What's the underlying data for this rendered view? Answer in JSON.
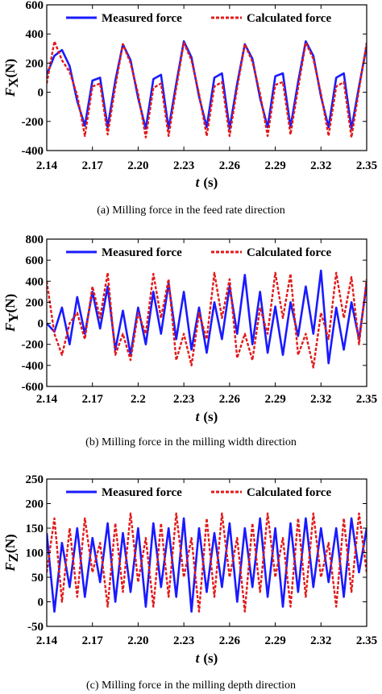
{
  "colors": {
    "measured": "#1a1aff",
    "calculated": "#e21a1a",
    "axis": "#000000"
  },
  "chart_data": [
    {
      "type": "line",
      "caption": "(a) Milling force in the feed rate direction",
      "ylabel_sym": "F",
      "ylabel_sub": "X",
      "ylabel_unit": "(N)",
      "xlabel_sym": "t",
      "xlabel_unit": "(s)",
      "xlim": [
        2.14,
        2.35
      ],
      "ylim": [
        -400,
        600
      ],
      "xticks": [
        2.14,
        2.17,
        2.2,
        2.23,
        2.26,
        2.29,
        2.32,
        2.35
      ],
      "xtick_labels": [
        "2.14",
        "2.17",
        "2.20",
        "2.23",
        "2.26",
        "2.29",
        "2.32",
        "2.35"
      ],
      "yticks": [
        -400,
        -200,
        0,
        200,
        400,
        600
      ],
      "ytick_labels": [
        "-400",
        "-200",
        "0",
        "200",
        "400",
        "600"
      ],
      "legend": [
        "Measured force",
        "Calculated force"
      ],
      "series": [
        {
          "name": "Measured force",
          "style": "solid",
          "x": [
            2.14,
            2.145,
            2.15,
            2.155,
            2.16,
            2.165,
            2.17,
            2.175,
            2.18,
            2.185,
            2.19,
            2.195,
            2.2,
            2.205,
            2.21,
            2.215,
            2.22,
            2.225,
            2.23,
            2.235,
            2.24,
            2.245,
            2.25,
            2.255,
            2.26,
            2.265,
            2.27,
            2.275,
            2.28,
            2.285,
            2.29,
            2.295,
            2.3,
            2.305,
            2.31,
            2.315,
            2.32,
            2.325,
            2.33,
            2.335,
            2.34,
            2.345,
            2.35
          ],
          "y": [
            120,
            250,
            290,
            180,
            -60,
            -230,
            80,
            100,
            -240,
            80,
            330,
            220,
            -40,
            -250,
            90,
            120,
            -250,
            60,
            350,
            240,
            -30,
            -240,
            100,
            130,
            -250,
            60,
            330,
            230,
            -40,
            -240,
            110,
            130,
            -240,
            70,
            350,
            250,
            -30,
            -240,
            100,
            130,
            -250,
            40,
            320
          ]
        },
        {
          "name": "Calculated force",
          "style": "dashed",
          "x": [
            2.14,
            2.145,
            2.15,
            2.155,
            2.16,
            2.165,
            2.17,
            2.175,
            2.18,
            2.185,
            2.19,
            2.195,
            2.2,
            2.205,
            2.21,
            2.215,
            2.22,
            2.225,
            2.23,
            2.235,
            2.24,
            2.245,
            2.25,
            2.255,
            2.26,
            2.265,
            2.27,
            2.275,
            2.28,
            2.285,
            2.29,
            2.295,
            2.3,
            2.305,
            2.31,
            2.315,
            2.32,
            2.325,
            2.33,
            2.335,
            2.34,
            2.345,
            2.35
          ],
          "y": [
            60,
            350,
            220,
            140,
            -20,
            -300,
            40,
            60,
            -290,
            40,
            330,
            200,
            -10,
            -310,
            30,
            60,
            -300,
            30,
            340,
            220,
            -10,
            -300,
            40,
            70,
            -300,
            30,
            330,
            210,
            -10,
            -300,
            50,
            70,
            -290,
            30,
            340,
            230,
            -10,
            -300,
            40,
            70,
            -310,
            20,
            340
          ]
        }
      ]
    },
    {
      "type": "line",
      "caption": "(b) Milling force in the milling width direction",
      "ylabel_sym": "F",
      "ylabel_sub": "Y",
      "ylabel_unit": "(N)",
      "xlabel_sym": "t",
      "xlabel_unit": "(s)",
      "xlim": [
        2.14,
        2.35
      ],
      "ylim": [
        -600,
        800
      ],
      "xticks": [
        2.14,
        2.17,
        2.2,
        2.23,
        2.26,
        2.29,
        2.32,
        2.35
      ],
      "xtick_labels": [
        "2.14",
        "2.17",
        "2.2",
        "2.23",
        "2.26",
        "2.29",
        "2.32",
        "2.35"
      ],
      "yticks": [
        -600,
        -400,
        -200,
        0,
        200,
        400,
        600,
        800
      ],
      "ytick_labels": [
        "-600",
        "-400",
        "-200",
        "0",
        "200",
        "400",
        "600",
        "800"
      ],
      "legend": [
        "Measured force",
        "Calculated force"
      ],
      "series": [
        {
          "name": "Measured force",
          "style": "solid",
          "x": [
            2.14,
            2.145,
            2.15,
            2.155,
            2.16,
            2.165,
            2.17,
            2.175,
            2.18,
            2.185,
            2.19,
            2.195,
            2.2,
            2.205,
            2.21,
            2.215,
            2.22,
            2.225,
            2.23,
            2.235,
            2.24,
            2.245,
            2.25,
            2.255,
            2.26,
            2.265,
            2.27,
            2.275,
            2.28,
            2.285,
            2.29,
            2.295,
            2.3,
            2.305,
            2.31,
            2.315,
            2.32,
            2.325,
            2.33,
            2.335,
            2.34,
            2.345,
            2.35
          ],
          "y": [
            0,
            -80,
            150,
            -200,
            250,
            -100,
            300,
            -50,
            350,
            -250,
            120,
            -300,
            150,
            -200,
            300,
            -100,
            380,
            -150,
            300,
            -250,
            150,
            -280,
            200,
            -150,
            350,
            -100,
            460,
            -200,
            300,
            -280,
            160,
            -300,
            200,
            -120,
            350,
            -100,
            500,
            -380,
            150,
            -250,
            200,
            -150,
            380
          ]
        },
        {
          "name": "Calculated force",
          "style": "dashed",
          "x": [
            2.14,
            2.145,
            2.15,
            2.155,
            2.16,
            2.165,
            2.17,
            2.175,
            2.18,
            2.185,
            2.19,
            2.195,
            2.2,
            2.205,
            2.21,
            2.215,
            2.22,
            2.225,
            2.23,
            2.235,
            2.24,
            2.245,
            2.25,
            2.255,
            2.26,
            2.265,
            2.27,
            2.275,
            2.28,
            2.285,
            2.29,
            2.295,
            2.3,
            2.305,
            2.31,
            2.315,
            2.32,
            2.325,
            2.33,
            2.335,
            2.34,
            2.345,
            2.35
          ],
          "y": [
            400,
            -100,
            -300,
            0,
            100,
            -150,
            350,
            50,
            480,
            -300,
            -100,
            -350,
            100,
            -100,
            470,
            50,
            420,
            -350,
            -100,
            -400,
            100,
            -150,
            480,
            50,
            420,
            -330,
            -100,
            -350,
            150,
            -100,
            480,
            50,
            470,
            -300,
            -100,
            -420,
            100,
            -150,
            480,
            50,
            440,
            -200,
            420
          ]
        }
      ]
    },
    {
      "type": "line",
      "caption": "(c) Milling force in the milling depth direction",
      "ylabel_sym": "F",
      "ylabel_sub": "Z",
      "ylabel_unit": "(N)",
      "xlabel_sym": "t",
      "xlabel_unit": "(s)",
      "xlim": [
        2.14,
        2.35
      ],
      "ylim": [
        -50,
        250
      ],
      "xticks": [
        2.14,
        2.17,
        2.2,
        2.23,
        2.26,
        2.29,
        2.32,
        2.35
      ],
      "xtick_labels": [
        "2.14",
        "2.17",
        "2.20",
        "2.23",
        "2.26",
        "2.29",
        "2.32",
        "2.35"
      ],
      "yticks": [
        -50,
        0,
        50,
        100,
        150,
        200,
        250
      ],
      "ytick_labels": [
        "-50",
        "0",
        "50",
        "100",
        "150",
        "200",
        "250"
      ],
      "legend": [
        "Measured force",
        "Calculated force"
      ],
      "series": [
        {
          "name": "Measured force",
          "style": "solid",
          "x": [
            2.14,
            2.145,
            2.15,
            2.155,
            2.16,
            2.165,
            2.17,
            2.175,
            2.18,
            2.185,
            2.19,
            2.195,
            2.2,
            2.205,
            2.21,
            2.215,
            2.22,
            2.225,
            2.23,
            2.235,
            2.24,
            2.245,
            2.25,
            2.255,
            2.26,
            2.265,
            2.27,
            2.275,
            2.28,
            2.285,
            2.29,
            2.295,
            2.3,
            2.305,
            2.31,
            2.315,
            2.32,
            2.325,
            2.33,
            2.335,
            2.34,
            2.345,
            2.35
          ],
          "y": [
            140,
            -20,
            120,
            30,
            150,
            10,
            130,
            40,
            160,
            0,
            140,
            20,
            150,
            -10,
            160,
            30,
            150,
            10,
            170,
            -20,
            150,
            20,
            140,
            30,
            160,
            0,
            150,
            30,
            170,
            10,
            150,
            -10,
            160,
            20,
            170,
            30,
            150,
            40,
            150,
            10,
            170,
            60,
            150
          ]
        },
        {
          "name": "Calculated force",
          "style": "dashed",
          "x": [
            2.14,
            2.145,
            2.15,
            2.155,
            2.16,
            2.165,
            2.17,
            2.175,
            2.18,
            2.185,
            2.19,
            2.195,
            2.2,
            2.205,
            2.21,
            2.215,
            2.22,
            2.225,
            2.23,
            2.235,
            2.24,
            2.245,
            2.25,
            2.255,
            2.26,
            2.265,
            2.27,
            2.275,
            2.28,
            2.285,
            2.29,
            2.295,
            2.3,
            2.305,
            2.31,
            2.315,
            2.32,
            2.325,
            2.33,
            2.335,
            2.34,
            2.345,
            2.35
          ],
          "y": [
            60,
            170,
            0,
            150,
            10,
            170,
            60,
            120,
            -10,
            160,
            20,
            180,
            40,
            130,
            -10,
            160,
            10,
            180,
            50,
            130,
            -20,
            170,
            10,
            180,
            50,
            130,
            -20,
            160,
            20,
            180,
            50,
            130,
            -10,
            170,
            10,
            180,
            50,
            120,
            -10,
            170,
            20,
            180,
            60
          ]
        }
      ]
    }
  ]
}
